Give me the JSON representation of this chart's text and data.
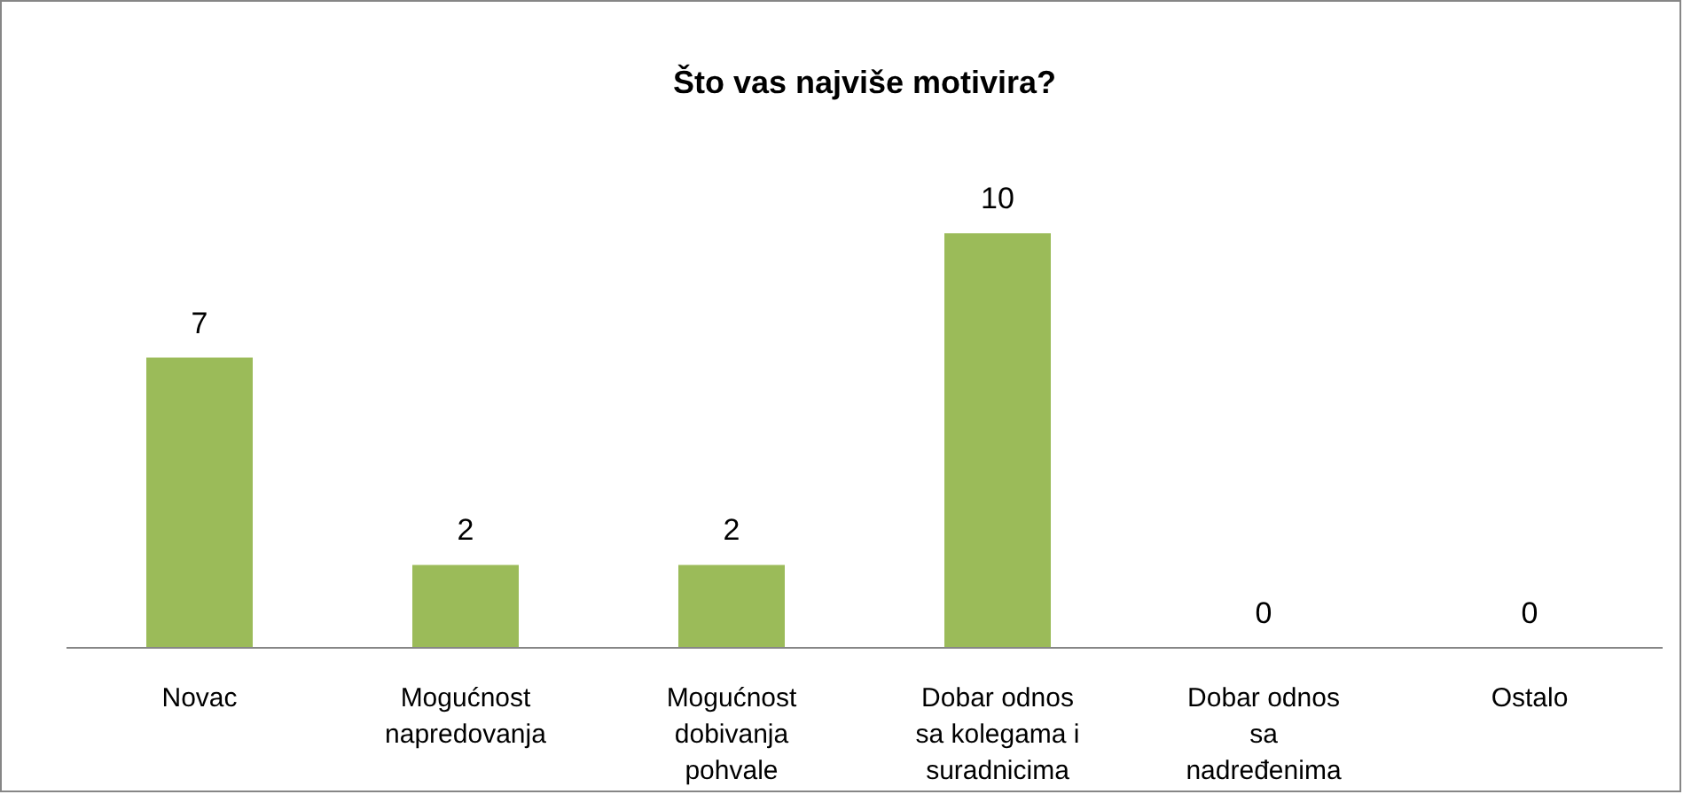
{
  "chart_data": {
    "type": "bar",
    "title": "Što vas najviše motivira?",
    "categories": [
      "Novac",
      "Mogućnost napredovanja",
      "Mogućnost dobivanja pohvale",
      "Dobar odnos sa kolegama i suradnicima",
      "Dobar odnos sa nadređenima",
      "Ostalo"
    ],
    "values": [
      7,
      2,
      2,
      10,
      0,
      0
    ],
    "color": "#9bbb59",
    "data_labels": true
  }
}
